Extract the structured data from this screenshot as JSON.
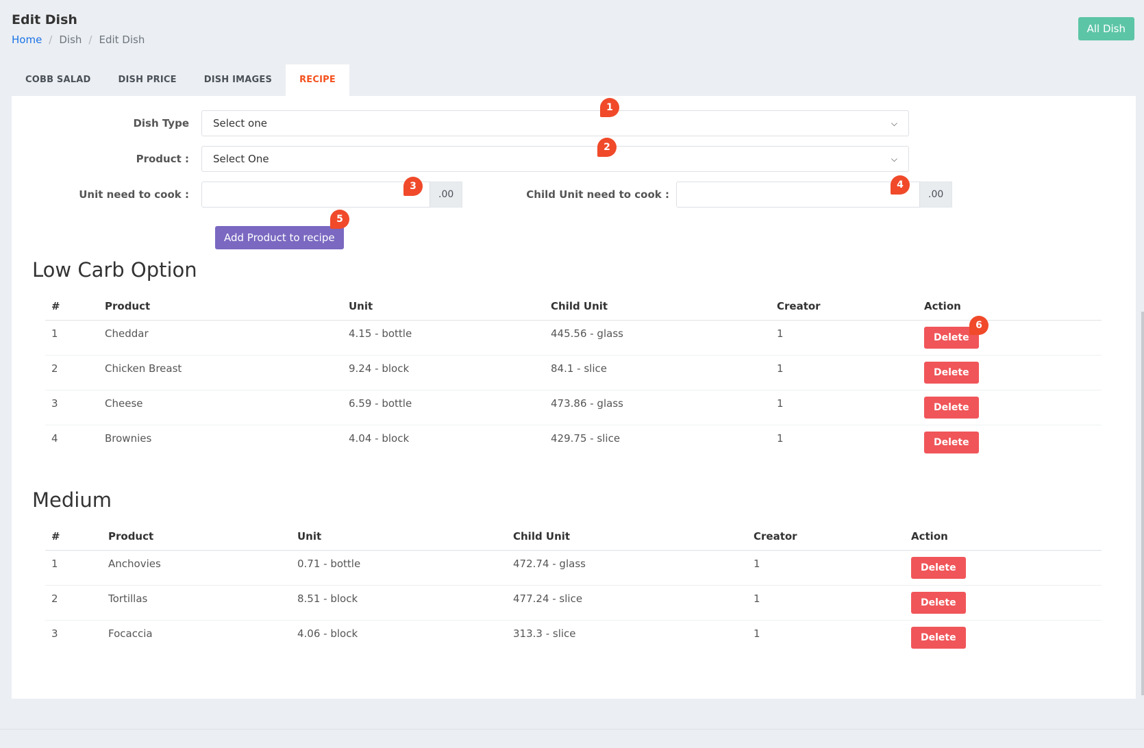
{
  "header": {
    "title": "Edit Dish",
    "all_dish_label": "All Dish",
    "breadcrumb": [
      "Home",
      "Dish",
      "Edit Dish"
    ]
  },
  "tabs": [
    {
      "label": "COBB SALAD"
    },
    {
      "label": "DISH PRICE"
    },
    {
      "label": "DISH IMAGES"
    },
    {
      "label": "RECIPE"
    }
  ],
  "form": {
    "dish_type_label": "Dish Type",
    "dish_type_value": "Select one",
    "product_label": "Product :",
    "product_value": "Select One",
    "unit_label": "Unit need to cook :",
    "unit_value": "",
    "unit_suffix": ".00",
    "child_unit_label": "Child Unit need to cook :",
    "child_unit_value": "",
    "child_unit_suffix": ".00",
    "add_button": "Add Product to recipe"
  },
  "sections": [
    {
      "title": "Low Carb Option",
      "headers": [
        "#",
        "Product",
        "Unit",
        "Child Unit",
        "Creator",
        "Action"
      ],
      "rows": [
        {
          "no": "1",
          "product": "Cheddar",
          "unit": "4.15 - bottle",
          "child_unit": "445.56 - glass",
          "creator": "1",
          "action": "Delete"
        },
        {
          "no": "2",
          "product": "Chicken Breast",
          "unit": "9.24 - block",
          "child_unit": "84.1 - slice",
          "creator": "1",
          "action": "Delete"
        },
        {
          "no": "3",
          "product": "Cheese",
          "unit": "6.59 - bottle",
          "child_unit": "473.86 - glass",
          "creator": "1",
          "action": "Delete"
        },
        {
          "no": "4",
          "product": "Brownies",
          "unit": "4.04 - block",
          "child_unit": "429.75 - slice",
          "creator": "1",
          "action": "Delete"
        }
      ]
    },
    {
      "title": "Medium",
      "headers": [
        "#",
        "Product",
        "Unit",
        "Child Unit",
        "Creator",
        "Action"
      ],
      "rows": [
        {
          "no": "1",
          "product": "Anchovies",
          "unit": "0.71 - bottle",
          "child_unit": "472.74 - glass",
          "creator": "1",
          "action": "Delete"
        },
        {
          "no": "2",
          "product": "Tortillas",
          "unit": "8.51 - block",
          "child_unit": "477.24 - slice",
          "creator": "1",
          "action": "Delete"
        },
        {
          "no": "3",
          "product": "Focaccia",
          "unit": "4.06 - block",
          "child_unit": "313.3 - slice",
          "creator": "1",
          "action": "Delete"
        }
      ]
    }
  ],
  "markers": [
    "1",
    "2",
    "3",
    "4",
    "5",
    "6"
  ],
  "colors": {
    "accent_tab": "#f4511e",
    "all_dish_button": "#5cc5a6",
    "add_button": "#7a68c1",
    "delete_button": "#f05559",
    "marker": "#f04a2a"
  }
}
